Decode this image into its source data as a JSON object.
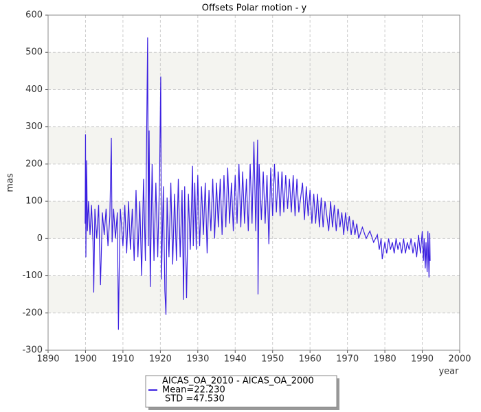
{
  "chart_data": {
    "type": "line",
    "title": "Offsets Polar motion - y",
    "x_label": "year",
    "y_label": "mas",
    "xlim": [
      1890,
      2000
    ],
    "xticks": [
      1890,
      1900,
      1910,
      1920,
      1930,
      1940,
      1950,
      1960,
      1970,
      1980,
      1990,
      2000
    ],
    "ylim": [
      -300,
      600
    ],
    "yticks": [
      -300,
      -200,
      -100,
      0,
      100,
      200,
      300,
      400,
      500,
      600
    ],
    "grid": true,
    "legend": "bottom",
    "annotations": [
      "Mean=22.230",
      "STD =47.530"
    ],
    "series": [
      {
        "name": "AICAS_OA_2010 - AICAS_OA_2000",
        "color": "#3a1fe0",
        "x": [
          1899.9,
          1900.0,
          1900.1,
          1900.3,
          1900.5,
          1900.8,
          1901.2,
          1901.6,
          1902.0,
          1902.2,
          1902.5,
          1903.0,
          1903.5,
          1904.0,
          1904.5,
          1905.0,
          1905.5,
          1906.0,
          1906.5,
          1906.9,
          1907.1,
          1907.5,
          1908.0,
          1908.5,
          1908.8,
          1909.0,
          1909.3,
          1910.0,
          1910.5,
          1911.0,
          1911.5,
          1912.0,
          1912.5,
          1913.0,
          1913.5,
          1914.0,
          1914.5,
          1915.0,
          1915.5,
          1916.0,
          1916.6,
          1916.8,
          1917.0,
          1917.3,
          1917.8,
          1918.3,
          1918.8,
          1919.3,
          1919.8,
          1920.1,
          1920.3,
          1920.8,
          1921.2,
          1921.5,
          1921.8,
          1922.3,
          1922.8,
          1923.3,
          1923.8,
          1924.3,
          1924.8,
          1925.3,
          1925.8,
          1926.2,
          1926.5,
          1927.0,
          1927.5,
          1928.0,
          1928.6,
          1928.8,
          1929.2,
          1929.6,
          1930.0,
          1930.5,
          1931.0,
          1931.5,
          1932.0,
          1932.5,
          1933.0,
          1933.5,
          1934.0,
          1934.5,
          1935.0,
          1935.5,
          1936.0,
          1936.5,
          1937.0,
          1937.5,
          1938.0,
          1938.5,
          1939.0,
          1939.5,
          1940.0,
          1940.5,
          1941.0,
          1941.5,
          1942.0,
          1942.5,
          1943.0,
          1943.5,
          1944.0,
          1944.5,
          1945.0,
          1945.5,
          1946.0,
          1946.1,
          1946.4,
          1947.0,
          1947.5,
          1948.0,
          1948.5,
          1949.0,
          1949.5,
          1950.0,
          1950.5,
          1951.0,
          1951.5,
          1952.0,
          1952.5,
          1953.0,
          1953.5,
          1954.0,
          1954.5,
          1955.0,
          1955.5,
          1956.0,
          1956.5,
          1957.0,
          1958.0,
          1958.5,
          1959.0,
          1959.5,
          1960.0,
          1960.5,
          1961.0,
          1961.5,
          1962.0,
          1962.5,
          1963.0,
          1963.5,
          1964.0,
          1965.0,
          1965.5,
          1966.0,
          1966.5,
          1967.0,
          1967.5,
          1968.0,
          1968.5,
          1969.0,
          1969.5,
          1970.0,
          1970.5,
          1971.0,
          1971.5,
          1972.0,
          1972.5,
          1973.0,
          1974.0,
          1975.0,
          1976.0,
          1977.0,
          1978.0,
          1978.5,
          1979.0,
          1979.3,
          1980.0,
          1980.5,
          1981.0,
          1981.5,
          1982.0,
          1982.5,
          1983.0,
          1983.5,
          1984.0,
          1984.5,
          1985.0,
          1985.5,
          1986.0,
          1986.5,
          1987.0,
          1987.5,
          1988.0,
          1988.5,
          1989.0,
          1989.5,
          1990.0,
          1990.3,
          1990.5,
          1990.8,
          1991.0,
          1991.3,
          1991.5,
          1991.8,
          1992.0,
          1992.1
        ],
        "values": [
          40,
          280,
          -50,
          210,
          20,
          100,
          10,
          90,
          -10,
          -145,
          80,
          0,
          90,
          -125,
          70,
          10,
          80,
          -20,
          60,
          270,
          -10,
          80,
          0,
          70,
          -245,
          -90,
          80,
          -20,
          90,
          -40,
          100,
          -30,
          80,
          -60,
          130,
          -50,
          100,
          -100,
          160,
          -60,
          540,
          -20,
          290,
          -130,
          200,
          -60,
          150,
          -50,
          170,
          435,
          -110,
          140,
          -140,
          -205,
          110,
          -50,
          150,
          -70,
          120,
          -60,
          160,
          -50,
          130,
          -165,
          140,
          -160,
          120,
          -30,
          195,
          -20,
          150,
          -30,
          170,
          -20,
          140,
          10,
          150,
          -40,
          130,
          20,
          160,
          0,
          150,
          30,
          160,
          10,
          170,
          30,
          190,
          40,
          150,
          20,
          170,
          40,
          200,
          30,
          180,
          40,
          160,
          20,
          200,
          40,
          260,
          20,
          265,
          -150,
          200,
          50,
          180,
          40,
          170,
          -15,
          190,
          60,
          200,
          70,
          180,
          60,
          180,
          70,
          170,
          80,
          160,
          70,
          170,
          60,
          160,
          70,
          150,
          50,
          140,
          60,
          130,
          40,
          120,
          40,
          120,
          30,
          110,
          30,
          100,
          20,
          100,
          30,
          90,
          20,
          80,
          30,
          70,
          10,
          70,
          20,
          60,
          10,
          50,
          10,
          40,
          0,
          30,
          0,
          20,
          -10,
          10,
          -30,
          0,
          -55,
          -10,
          -40,
          0,
          -30,
          -10,
          -40,
          0,
          -30,
          -10,
          -40,
          0,
          -40,
          -10,
          -30,
          0,
          -40,
          -10,
          -50,
          10,
          -40,
          20,
          -60,
          0,
          -80,
          -10,
          -90,
          20,
          -105,
          15,
          -60
        ]
      }
    ]
  }
}
